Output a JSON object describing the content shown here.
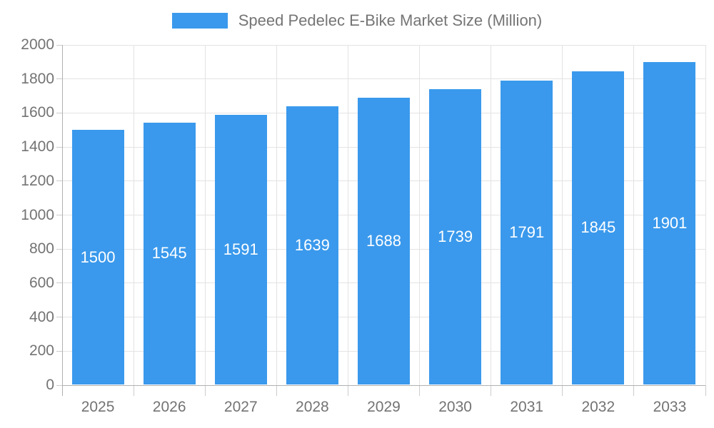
{
  "chart_data": {
    "type": "bar",
    "title": "Speed Pedelec E-Bike Market Size (Million)",
    "legend_position": "top",
    "categories": [
      "2025",
      "2026",
      "2027",
      "2028",
      "2029",
      "2030",
      "2031",
      "2032",
      "2033"
    ],
    "series": [
      {
        "name": "Speed Pedelec E-Bike Market Size (Million)",
        "values": [
          1500,
          1545,
          1591,
          1639,
          1688,
          1739,
          1791,
          1845,
          1901
        ]
      }
    ],
    "value_labels_shown": true,
    "xlabel": "",
    "ylabel": "",
    "ylim": [
      0,
      2000
    ],
    "ytick_step": 200,
    "grid": true
  },
  "style": {
    "bar_color": "#3A99EC",
    "value_label_color": "#ffffff",
    "grid_color": "#e3e3e3",
    "axis_color": "#b1b1b1",
    "tick_color": "#cccccc",
    "tick_label_color": "#737373",
    "legend_text_color": "#757575",
    "background": "#ffffff"
  }
}
